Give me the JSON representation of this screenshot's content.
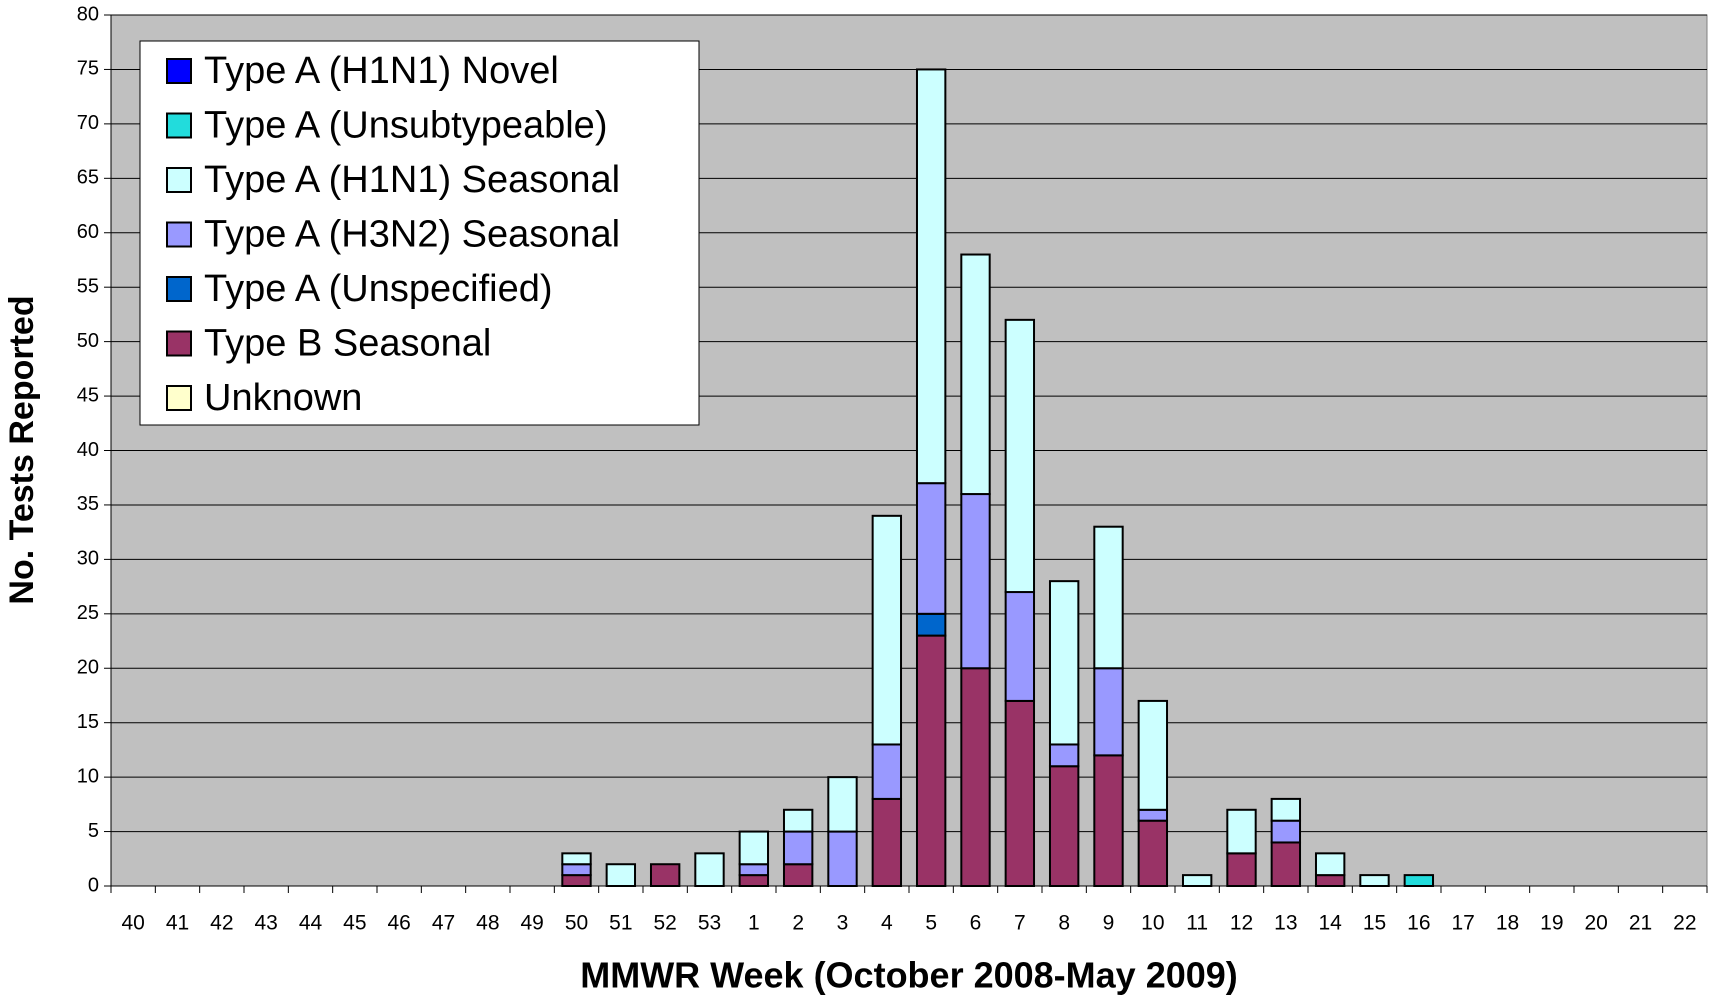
{
  "chart_data": {
    "type": "stacked_bar",
    "x_label": "MMWR Week (October 2008-May 2009)",
    "y_label": "No. Tests Reported",
    "categories": [
      "40",
      "41",
      "42",
      "43",
      "44",
      "45",
      "46",
      "47",
      "48",
      "49",
      "50",
      "51",
      "52",
      "53",
      "1",
      "2",
      "3",
      "4",
      "5",
      "6",
      "7",
      "8",
      "9",
      "10",
      "11",
      "12",
      "13",
      "14",
      "15",
      "16",
      "17",
      "18",
      "19",
      "20",
      "21",
      "22"
    ],
    "series": [
      {
        "name": "Type A (H1N1) Novel",
        "color": "#0000ff",
        "values": [
          0,
          0,
          0,
          0,
          0,
          0,
          0,
          0,
          0,
          0,
          0,
          0,
          0,
          0,
          0,
          0,
          0,
          0,
          0,
          0,
          0,
          0,
          0,
          0,
          0,
          0,
          0,
          0,
          0,
          0,
          0,
          0,
          0,
          0,
          0,
          0
        ]
      },
      {
        "name": "Type A (Unsubtypeable)",
        "color": "#22dcdc",
        "values": [
          0,
          0,
          0,
          0,
          0,
          0,
          0,
          0,
          0,
          0,
          0,
          0,
          0,
          0,
          0,
          0,
          0,
          0,
          0,
          0,
          0,
          0,
          0,
          0,
          0,
          0,
          0,
          0,
          0,
          1,
          0,
          0,
          0,
          0,
          0,
          0
        ]
      },
      {
        "name": "Type A (H1N1) Seasonal",
        "color": "#ccffff",
        "values": [
          0,
          0,
          0,
          0,
          0,
          0,
          0,
          0,
          0,
          0,
          1,
          2,
          0,
          3,
          3,
          2,
          5,
          21,
          38,
          22,
          25,
          15,
          13,
          10,
          1,
          4,
          2,
          2,
          1,
          0,
          0,
          0,
          0,
          0,
          0,
          0
        ]
      },
      {
        "name": "Type A (H3N2) Seasonal",
        "color": "#9999ff",
        "values": [
          0,
          0,
          0,
          0,
          0,
          0,
          0,
          0,
          0,
          0,
          1,
          0,
          0,
          0,
          1,
          3,
          5,
          5,
          12,
          16,
          10,
          2,
          8,
          1,
          0,
          0,
          2,
          0,
          0,
          0,
          0,
          0,
          0,
          0,
          0,
          0
        ]
      },
      {
        "name": "Type A (Unspecified)",
        "color": "#0066cc",
        "values": [
          0,
          0,
          0,
          0,
          0,
          0,
          0,
          0,
          0,
          0,
          0,
          0,
          0,
          0,
          0,
          0,
          0,
          0,
          2,
          0,
          0,
          0,
          0,
          0,
          0,
          0,
          0,
          0,
          0,
          0,
          0,
          0,
          0,
          0,
          0,
          0
        ]
      },
      {
        "name": "Type B Seasonal",
        "color": "#993366",
        "values": [
          0,
          0,
          0,
          0,
          0,
          0,
          0,
          0,
          0,
          0,
          1,
          0,
          2,
          0,
          1,
          2,
          0,
          8,
          23,
          20,
          17,
          11,
          12,
          6,
          0,
          3,
          4,
          1,
          0,
          0,
          0,
          0,
          0,
          0,
          0,
          0
        ]
      },
      {
        "name": "Unknown",
        "color": "#ffffcc",
        "values": [
          0,
          0,
          0,
          0,
          0,
          0,
          0,
          0,
          0,
          0,
          0,
          0,
          0,
          0,
          0,
          0,
          0,
          0,
          0,
          0,
          0,
          0,
          0,
          0,
          0,
          0,
          0,
          0,
          0,
          0,
          0,
          0,
          0,
          0,
          0,
          0
        ]
      }
    ],
    "ylim": [
      0,
      80
    ],
    "yticks": [
      0,
      5,
      10,
      15,
      20,
      25,
      30,
      35,
      40,
      45,
      50,
      55,
      60,
      65,
      70,
      75,
      80
    ],
    "grid": true,
    "legend": "upper left",
    "background": "#c0c0c0"
  }
}
